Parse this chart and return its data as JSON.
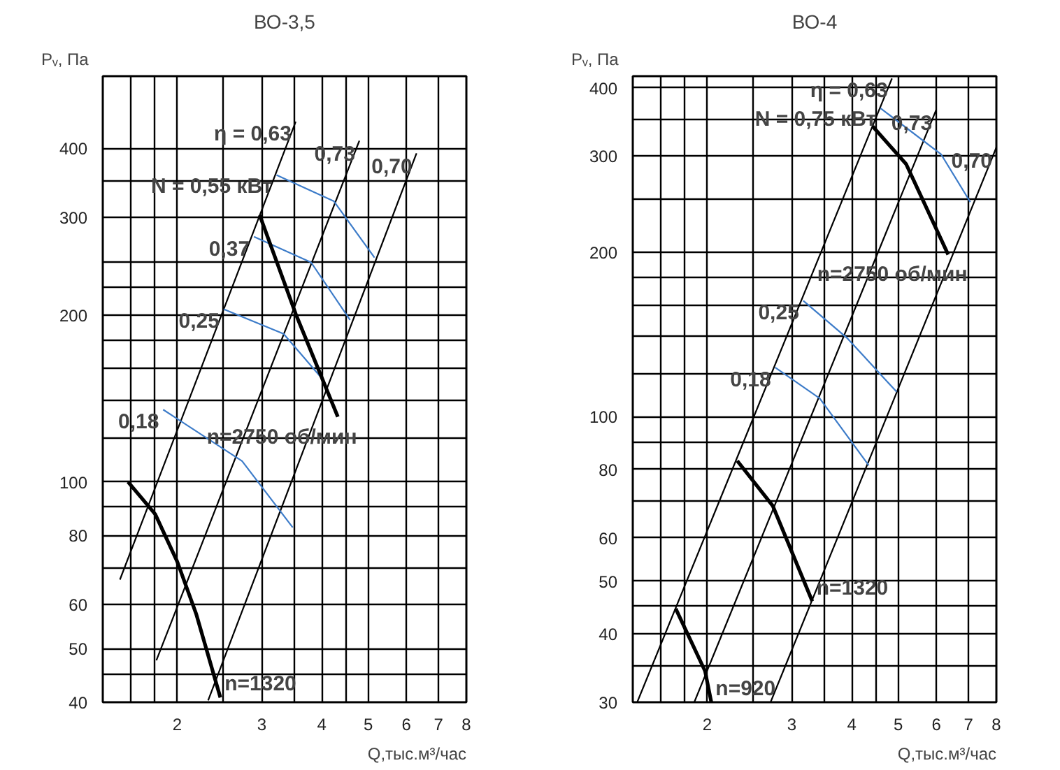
{
  "chart_data": [
    {
      "type": "line",
      "title": "ВО-3,5",
      "xlabel": "Q,тыс.м³/час",
      "ylabel": "Pᵥ, Па",
      "log": "xy",
      "grid": true,
      "xlim": [
        1.4,
        8
      ],
      "ylim": [
        40,
        540
      ],
      "xticks": [
        {
          "value": 1.6,
          "label": null
        },
        {
          "value": 1.8,
          "label": null
        },
        2,
        {
          "value": 2.5,
          "label": null
        },
        3,
        {
          "value": 3.5,
          "label": null
        },
        4,
        {
          "value": 4.5,
          "label": null
        },
        5,
        6,
        7,
        8
      ],
      "yticks": [
        40,
        {
          "value": 45,
          "label": null
        },
        50,
        60,
        {
          "value": 70,
          "label": null
        },
        80,
        {
          "value": 90,
          "label": null
        },
        100,
        {
          "value": 120,
          "label": null
        },
        {
          "value": 140,
          "label": null
        },
        {
          "value": 160,
          "label": null
        },
        {
          "value": 180,
          "label": null
        },
        200,
        {
          "value": 225,
          "label": null
        },
        {
          "value": 250,
          "label": null
        },
        300,
        {
          "value": 350,
          "label": null
        },
        400
      ],
      "series": [
        {
          "name": "η = 0,63",
          "color": "#000000",
          "x": [
            1.52,
            3.53
          ],
          "values": [
            66.6,
            447
          ]
        },
        {
          "name": "0,73",
          "color": "#000000",
          "x": [
            1.81,
            4.79
          ],
          "values": [
            47.6,
            413
          ]
        },
        {
          "name": "0,70",
          "color": "#000000",
          "x": [
            2.32,
            6.3
          ],
          "values": [
            40.3,
            392
          ]
        },
        {
          "name": "N = 0,55 кВт",
          "color": "#3d7cc9",
          "x": [
            5.15,
            4.24,
            3.22
          ],
          "values": [
            254,
            321,
            358
          ]
        },
        {
          "name": "0,37",
          "color": "#3d7cc9",
          "x": [
            4.58,
            3.8,
            2.89
          ],
          "values": [
            196,
            249,
            277
          ]
        },
        {
          "name": "0,25",
          "color": "#3d7cc9",
          "x": [
            3.97,
            3.33,
            2.5
          ],
          "values": [
            155,
            185,
            205
          ]
        },
        {
          "name": "0,18",
          "color": "#3d7cc9",
          "x": [
            3.48,
            2.73,
            1.87
          ],
          "values": [
            82.7,
            109,
            135
          ]
        },
        {
          "name": "n=2750 об/мин",
          "color": "#000000",
          "x": [
            2.97,
            3.53,
            4.32
          ],
          "values": [
            303,
            201,
            131
          ]
        },
        {
          "name": "n=1320",
          "color": "#000000",
          "x": [
            1.58,
            1.8,
            2.0,
            2.19,
            2.46
          ],
          "values": [
            100,
            87.4,
            71.8,
            57.8,
            40.8
          ]
        }
      ]
    },
    {
      "type": "line",
      "title": "ВО-4",
      "xlabel": "Q,тыс.м³/час",
      "ylabel": "Pᵥ, Па",
      "log": "xy",
      "grid": true,
      "xlim": [
        1.4,
        8
      ],
      "ylim": [
        30,
        420
      ],
      "xticks": [
        {
          "value": 1.6,
          "label": null
        },
        {
          "value": 1.8,
          "label": null
        },
        2,
        {
          "value": 2.5,
          "label": null
        },
        3,
        {
          "value": 3.5,
          "label": null
        },
        4,
        {
          "value": 4.5,
          "label": null
        },
        5,
        6,
        7,
        8
      ],
      "yticks": [
        30,
        {
          "value": 35,
          "label": null
        },
        40,
        {
          "value": 45,
          "label": null
        },
        50,
        60,
        {
          "value": 70,
          "label": null
        },
        80,
        {
          "value": 90,
          "label": null
        },
        100,
        {
          "value": 120,
          "label": null
        },
        {
          "value": 140,
          "label": null
        },
        {
          "value": 160,
          "label": null
        },
        {
          "value": 180,
          "label": null
        },
        200,
        {
          "value": 250,
          "label": null
        },
        300,
        {
          "value": 350,
          "label": null
        },
        400
      ],
      "series": [
        {
          "name": "η = 0,63",
          "color": "#000000",
          "x": [
            1.43,
            4.85
          ],
          "values": [
            30,
            416
          ]
        },
        {
          "name": "0,73",
          "color": "#000000",
          "x": [
            1.88,
            6.0
          ],
          "values": [
            30,
            365
          ]
        },
        {
          "name": "0,70",
          "color": "#000000",
          "x": [
            2.71,
            8.0
          ],
          "values": [
            30,
            311
          ]
        },
        {
          "name": "N = 0,75 кВт",
          "color": "#3d7cc9",
          "x": [
            7.06,
            6.14,
            4.59
          ],
          "values": [
            247,
            302,
            367
          ]
        },
        {
          "name": "0,25",
          "color": "#3d7cc9",
          "x": [
            4.96,
            3.92,
            3.17
          ],
          "values": [
            111,
            139,
            163
          ]
        },
        {
          "name": "0,18",
          "color": "#3d7cc9",
          "x": [
            4.34,
            3.43,
            2.77
          ],
          "values": [
            81.4,
            108,
            123
          ]
        },
        {
          "name": "n=2750 об/мин",
          "color": "#000000",
          "x": [
            4.42,
            5.19,
            6.35
          ],
          "values": [
            340,
            290,
            198
          ]
        },
        {
          "name": "n=1320",
          "color": "#000000",
          "x": [
            2.31,
            2.74,
            3.31
          ],
          "values": [
            83,
            68.6,
            45.9
          ]
        },
        {
          "name": "n=920",
          "color": "#000000",
          "x": [
            1.72,
            1.98,
            2.04
          ],
          "values": [
            44.5,
            34.2,
            30
          ]
        }
      ]
    }
  ]
}
